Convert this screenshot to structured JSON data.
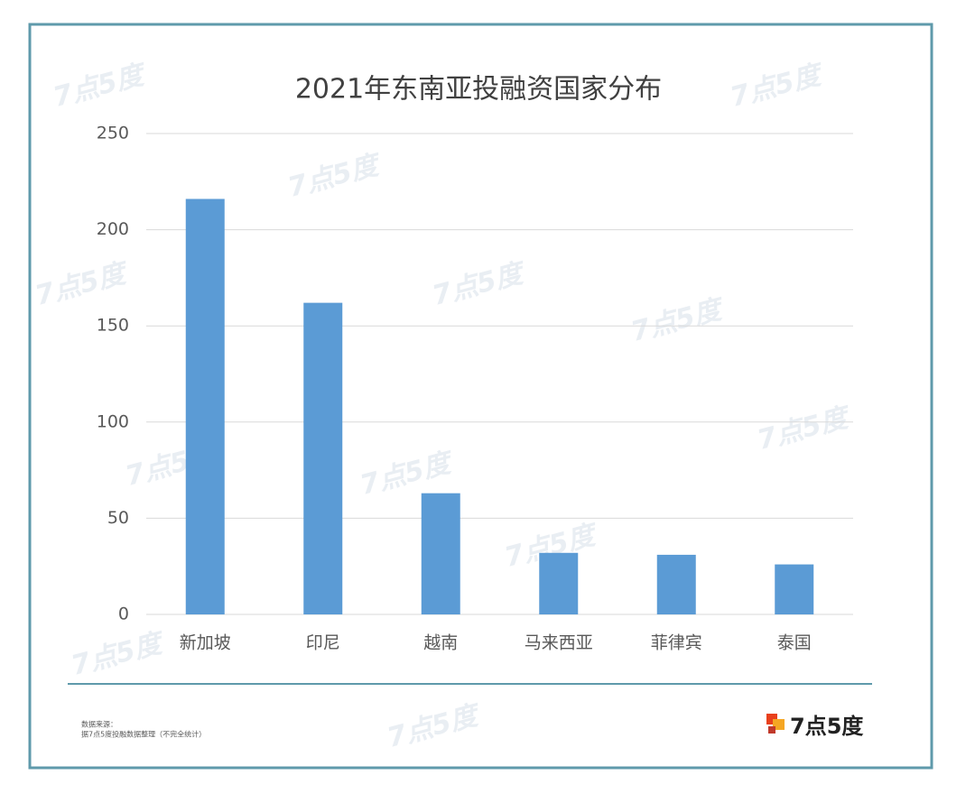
{
  "chart_data": {
    "type": "bar",
    "title": "2021年东南亚投融资国家分布",
    "categories": [
      "新加坡",
      "印尼",
      "越南",
      "马来西亚",
      "菲律宾",
      "泰国"
    ],
    "values": [
      216,
      162,
      63,
      32,
      31,
      26
    ],
    "color": "#5b9bd5",
    "ylim": [
      0,
      250
    ],
    "yticks": [
      0,
      50,
      100,
      150,
      200,
      250
    ],
    "grid": true
  },
  "footer": {
    "source_label": "数据来源：",
    "source_text": "据7点5度投融数据整理（不完全统计）",
    "logo": "7点5度",
    "watermark": "7点5度"
  }
}
